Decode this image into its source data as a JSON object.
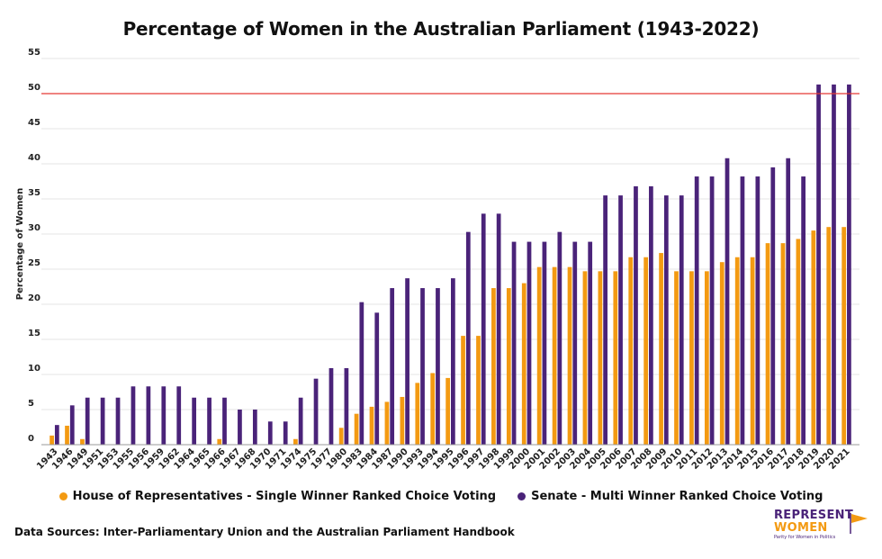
{
  "chart_data": {
    "type": "bar",
    "title": "Percentage of Women in the  Australian Parliament (1943-2022)",
    "xlabel": "",
    "ylabel": "Percentage of Women",
    "ylim": [
      0,
      55
    ],
    "yticks": [
      0,
      5,
      10,
      15,
      20,
      25,
      30,
      35,
      40,
      45,
      50,
      55
    ],
    "grid": true,
    "legend_placement": "bottom-center",
    "reference_line": {
      "y": 50,
      "color": "#e53935"
    },
    "categories": [
      "1943",
      "1946",
      "1949",
      "1951",
      "1953",
      "1955",
      "1956",
      "1959",
      "1962",
      "1964",
      "1965",
      "1966",
      "1967",
      "1968",
      "1970",
      "1971",
      "1974",
      "1975",
      "1977",
      "1980",
      "1983",
      "1984",
      "1987",
      "1990",
      "1993",
      "1994",
      "1995",
      "1996",
      "1997",
      "1998",
      "1999",
      "2000",
      "2001",
      "2002",
      "2003",
      "2004",
      "2005",
      "2006",
      "2007",
      "2008",
      "2009",
      "2010",
      "2011",
      "2012",
      "2013",
      "2014",
      "2015",
      "2016",
      "2017",
      "2018",
      "2019",
      "2020",
      "2021"
    ],
    "series": [
      {
        "name": "House of Representatives - Single Winner Ranked Choice Voting",
        "color": "#f39a12",
        "values": [
          1.3,
          2.7,
          0.8,
          0,
          0,
          0,
          0,
          0,
          0,
          0,
          0,
          0.8,
          0,
          0,
          0,
          0,
          0.8,
          0,
          0,
          2.4,
          4.4,
          5.4,
          6.1,
          6.8,
          8.8,
          10.2,
          9.5,
          15.5,
          15.5,
          22.3,
          22.3,
          23.0,
          25.3,
          25.3,
          25.3,
          24.7,
          24.7,
          24.7,
          26.7,
          26.7,
          27.3,
          24.7,
          24.7,
          24.7,
          26.0,
          26.7,
          26.7,
          28.7,
          28.7,
          29.3,
          30.5,
          31.0,
          31.0
        ]
      },
      {
        "name": "Senate - Multi Winner Ranked Choice Voting",
        "color": "#4a2379",
        "values": [
          2.8,
          5.6,
          6.7,
          6.7,
          6.7,
          8.3,
          8.3,
          8.3,
          8.3,
          6.7,
          6.7,
          6.7,
          5.0,
          5.0,
          3.3,
          3.3,
          6.7,
          9.4,
          10.9,
          10.9,
          20.3,
          18.8,
          22.3,
          23.7,
          22.3,
          22.3,
          23.7,
          30.3,
          32.9,
          32.9,
          28.9,
          28.9,
          28.9,
          30.3,
          28.9,
          28.9,
          35.5,
          35.5,
          36.8,
          36.8,
          35.5,
          35.5,
          38.2,
          38.2,
          40.8,
          38.2,
          38.2,
          39.5,
          40.8,
          38.2,
          51.3,
          51.3,
          51.3
        ]
      }
    ]
  },
  "source_note": "Data Sources: Inter-Parliamentary Union and the Australian Parliament Handbook",
  "logo": {
    "line1": "REPRESENT",
    "line2": "WOMEN",
    "tagline": "Parity for Women in Politics"
  }
}
